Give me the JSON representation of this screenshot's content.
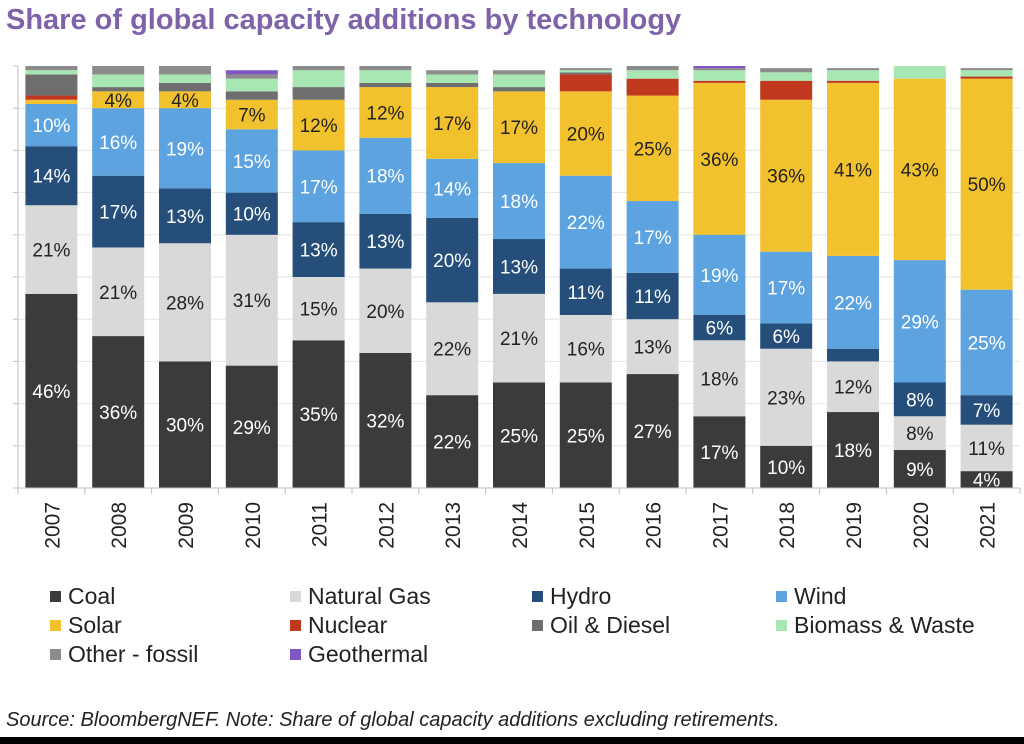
{
  "title": "Share of global capacity additions by technology",
  "chart_data": {
    "type": "bar",
    "stacked": true,
    "normalized_to_100": true,
    "title": "Share of global capacity additions by technology",
    "xlabel": "",
    "ylabel": "",
    "ylim": [
      0,
      100
    ],
    "categories": [
      "2007",
      "2008",
      "2009",
      "2010",
      "2011",
      "2012",
      "2013",
      "2014",
      "2015",
      "2016",
      "2017",
      "2018",
      "2019",
      "2020",
      "2021"
    ],
    "series": [
      {
        "name": "Coal",
        "color": "#3b3b3b",
        "values": [
          46,
          36,
          30,
          29,
          35,
          32,
          22,
          25,
          25,
          27,
          17,
          10,
          18,
          9,
          4
        ],
        "labels": [
          "46%",
          "36%",
          "30%",
          "29%",
          "35%",
          "32%",
          "22%",
          "25%",
          "25%",
          "27%",
          "17%",
          "10%",
          "18%",
          "9%",
          "4%"
        ]
      },
      {
        "name": "Natural Gas",
        "color": "#d9d9d9",
        "values": [
          21,
          21,
          28,
          31,
          15,
          20,
          22,
          21,
          16,
          13,
          18,
          23,
          12,
          8,
          11
        ],
        "labels": [
          "21%",
          "21%",
          "28%",
          "31%",
          "15%",
          "20%",
          "22%",
          "21%",
          "16%",
          "13%",
          "18%",
          "23%",
          "12%",
          "8%",
          "11%"
        ]
      },
      {
        "name": "Hydro",
        "color": "#254f7a",
        "values": [
          14,
          17,
          13,
          10,
          13,
          13,
          20,
          13,
          11,
          11,
          6,
          6,
          3,
          8,
          7
        ],
        "labels": [
          "14%",
          "17%",
          "13%",
          "10%",
          "13%",
          "13%",
          "20%",
          "13%",
          "11%",
          "11%",
          "6%",
          "6%",
          "",
          "8%",
          "7%"
        ]
      },
      {
        "name": "Wind",
        "color": "#5ca3e0",
        "values": [
          10,
          16,
          19,
          15,
          17,
          18,
          14,
          18,
          22,
          17,
          19,
          17,
          22,
          29,
          25
        ],
        "labels": [
          "10%",
          "16%",
          "19%",
          "15%",
          "17%",
          "18%",
          "14%",
          "18%",
          "22%",
          "17%",
          "19%",
          "17%",
          "22%",
          "29%",
          "25%"
        ]
      },
      {
        "name": "Solar",
        "color": "#f2c12e",
        "values": [
          1,
          4,
          4,
          7,
          12,
          12,
          17,
          17,
          20,
          25,
          36,
          36,
          41,
          43,
          50
        ],
        "labels": [
          "",
          "4%",
          "4%",
          "7%",
          "12%",
          "12%",
          "17%",
          "17%",
          "20%",
          "25%",
          "36%",
          "36%",
          "41%",
          "43%",
          "50%"
        ]
      },
      {
        "name": "Nuclear",
        "color": "#c0391f",
        "values": [
          1,
          0,
          0,
          0,
          0,
          0,
          0,
          0,
          4,
          4,
          0.5,
          4.5,
          0.5,
          0,
          0.5
        ],
        "labels": [
          "",
          "",
          "",
          "",
          "",
          "",
          "",
          "",
          "",
          "",
          "",
          "",
          "",
          "",
          ""
        ]
      },
      {
        "name": "Oil & Diesel",
        "color": "#6e6e6e",
        "values": [
          5,
          1,
          2,
          2,
          3,
          1,
          1,
          1,
          0.5,
          0,
          0,
          0,
          0,
          0,
          0
        ],
        "labels": [
          "",
          "",
          "",
          "",
          "",
          "",
          "",
          "",
          "",
          "",
          "",
          "",
          "",
          "",
          ""
        ]
      },
      {
        "name": "Biomass & Waste",
        "color": "#a8e6b4",
        "values": [
          1,
          3,
          2,
          3,
          4,
          3,
          2,
          3,
          0.5,
          2,
          2.5,
          2,
          2.5,
          3,
          1.5
        ],
        "labels": [
          "",
          "",
          "",
          "",
          "",
          "",
          "",
          "",
          "",
          "",
          "",
          "",
          "",
          "",
          ""
        ]
      },
      {
        "name": "Other - fossil",
        "color": "#8c8c8c",
        "values": [
          1,
          2,
          2,
          1,
          1,
          1,
          1,
          1,
          0.5,
          1,
          0.5,
          1,
          0.5,
          0,
          0.5
        ],
        "labels": [
          "",
          "",
          "",
          "",
          "",
          "",
          "",
          "",
          "",
          "",
          "",
          "",
          "",
          "",
          ""
        ]
      },
      {
        "name": "Geothermal",
        "color": "#7e57c2",
        "values": [
          0,
          0,
          0,
          1,
          0,
          0,
          0,
          0,
          0,
          0,
          0.5,
          0,
          0,
          0,
          0
        ],
        "labels": [
          "",
          "",
          "",
          "",
          "",
          "",
          "",
          "",
          "",
          "",
          "",
          "",
          "",
          "",
          ""
        ]
      }
    ]
  },
  "legend": [
    {
      "label": "Coal",
      "color": "#3b3b3b"
    },
    {
      "label": "Natural Gas",
      "color": "#d9d9d9"
    },
    {
      "label": "Hydro",
      "color": "#254f7a"
    },
    {
      "label": "Wind",
      "color": "#5ca3e0"
    },
    {
      "label": "Solar",
      "color": "#f2c12e"
    },
    {
      "label": "Nuclear",
      "color": "#c0391f"
    },
    {
      "label": "Oil & Diesel",
      "color": "#6e6e6e"
    },
    {
      "label": "Biomass & Waste",
      "color": "#a8e6b4"
    },
    {
      "label": "Other - fossil",
      "color": "#8c8c8c"
    },
    {
      "label": "Geothermal",
      "color": "#7e57c2"
    }
  ],
  "source_note": "Source: BloombergNEF. Note: Share of global capacity additions excluding retirements."
}
